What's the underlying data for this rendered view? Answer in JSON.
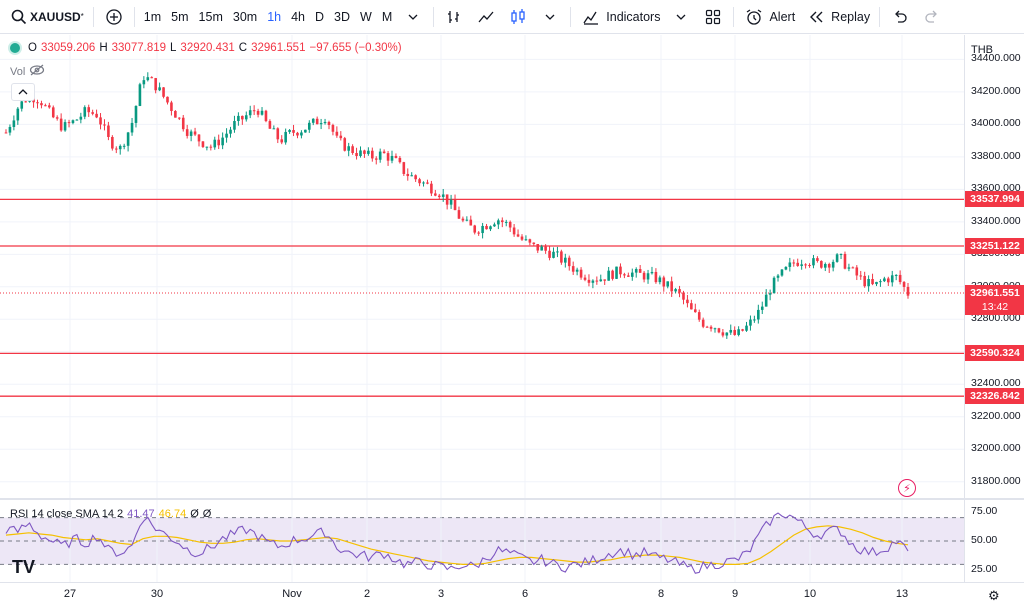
{
  "toolbar": {
    "symbol": "XAUUSD",
    "symbol_mark": "*",
    "timeframes": [
      "1m",
      "5m",
      "15m",
      "30m",
      "1h",
      "4h",
      "D",
      "3D",
      "W",
      "M"
    ],
    "active_timeframe": "1h",
    "indicators_label": "Indicators",
    "alert_label": "Alert",
    "replay_label": "Replay"
  },
  "legend": {
    "open_key": "O",
    "open": "33059.206",
    "high_key": "H",
    "high": "33077.819",
    "low_key": "L",
    "low": "32920.431",
    "close_key": "C",
    "close": "32961.551",
    "change": "−97.655 (−0.30%)",
    "vol_label": "Vol"
  },
  "currency": "THB",
  "price_axis": {
    "ticks": [
      "34400.000",
      "34200.000",
      "34000.000",
      "33800.000",
      "33600.000",
      "33400.000",
      "33200.000",
      "33000.000",
      "32800.000",
      "32600.000",
      "32400.000",
      "32200.000",
      "32000.000",
      "31800.000"
    ],
    "levels": [
      "33537.994",
      "33251.122",
      "32590.324",
      "32326.842"
    ],
    "current_price": "32961.551",
    "countdown": "13:42"
  },
  "rsi": {
    "label": "RSI 14 close SMA 14 2",
    "value": "41.47",
    "ma_value": "46.74",
    "extra1": "Ø",
    "extra2": "Ø",
    "ticks": [
      "75.00",
      "50.00",
      "25.00"
    ]
  },
  "time_axis": {
    "labels": [
      "27",
      "30",
      "Nov",
      "2",
      "3",
      "6",
      "8",
      "9",
      "10",
      "13"
    ]
  },
  "logo_text": "TV",
  "colors": {
    "up": "#089981",
    "down": "#f23645",
    "level_line": "#f23645",
    "rsi_line": "#7e57c2",
    "rsi_ma": "#f5c000",
    "rsi_band": "#ede7f6",
    "accent": "#2962ff"
  },
  "chart_data": {
    "type": "candlestick",
    "y_range": [
      31700,
      34550
    ],
    "x_labels": [
      "27",
      "30",
      "Nov",
      "2",
      "3",
      "6",
      "8",
      "9",
      "10",
      "13"
    ],
    "horizontal_levels": [
      33537.994,
      33251.122,
      32590.324,
      32326.842
    ],
    "last_price": 32961.551,
    "close_path": [
      33950,
      34100,
      34180,
      34150,
      34050,
      33980,
      34020,
      34080,
      34060,
      33900,
      33850,
      34000,
      34300,
      34250,
      34150,
      34050,
      33950,
      33900,
      33860,
      33920,
      34000,
      34050,
      34100,
      33980,
      33900,
      33950,
      33970,
      34010,
      34050,
      33900,
      33850,
      33820,
      33800,
      33820,
      33780,
      33700,
      33660,
      33620,
      33580,
      33500,
      33400,
      33350,
      33380,
      33420,
      33380,
      33300,
      33250,
      33230,
      33200,
      33150,
      33100,
      33060,
      33050,
      33080,
      33100,
      33080,
      33070,
      33050,
      33000,
      32950,
      32850,
      32780,
      32760,
      32720,
      32700,
      32760,
      32850,
      33000,
      33080,
      33150,
      33170,
      33140,
      33150,
      33180,
      33100,
      33040,
      33000,
      33050,
      33060,
      32960
    ],
    "rsi": {
      "y_range": [
        15,
        85
      ],
      "bands": [
        30,
        50,
        70
      ],
      "values": [
        60,
        58,
        65,
        55,
        50,
        45,
        52,
        48,
        55,
        42,
        40,
        45,
        72,
        62,
        55,
        50,
        42,
        40,
        45,
        52,
        56,
        60,
        55,
        48,
        45,
        50,
        52,
        55,
        58,
        45,
        40,
        38,
        36,
        40,
        35,
        30,
        32,
        30,
        28,
        26,
        30,
        28,
        35,
        42,
        40,
        36,
        32,
        34,
        30,
        28,
        30,
        32,
        36,
        40,
        42,
        38,
        40,
        36,
        34,
        30,
        26,
        28,
        30,
        32,
        34,
        40,
        55,
        68,
        74,
        70,
        62,
        55,
        58,
        60,
        48,
        42,
        40,
        44,
        50,
        41.47
      ],
      "ma": [
        55,
        56,
        57,
        56,
        55,
        53,
        52,
        51,
        52,
        50,
        48,
        47,
        52,
        54,
        54,
        53,
        51,
        49,
        48,
        48,
        49,
        51,
        52,
        51,
        50,
        50,
        51,
        52,
        53,
        52,
        49,
        46,
        43,
        41,
        39,
        37,
        35,
        33,
        32,
        31,
        30,
        30,
        31,
        33,
        35,
        36,
        36,
        35,
        34,
        33,
        32,
        32,
        33,
        34,
        36,
        37,
        38,
        38,
        37,
        36,
        34,
        32,
        31,
        30,
        30,
        31,
        35,
        41,
        48,
        55,
        60,
        62,
        63,
        62,
        60,
        57,
        53,
        50,
        48,
        46.74
      ]
    }
  }
}
